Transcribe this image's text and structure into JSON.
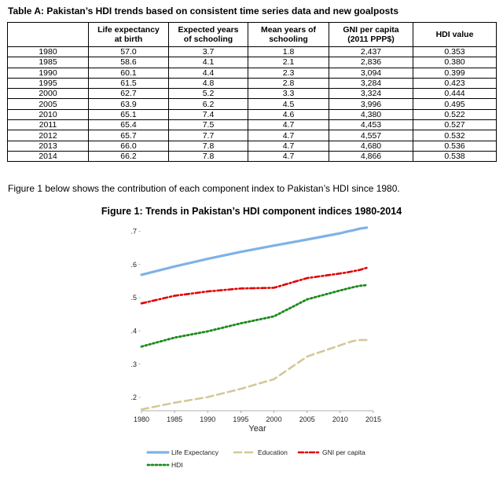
{
  "table": {
    "title": "Table A: Pakistan’s HDI trends based on consistent time series data and new goalposts",
    "headers": [
      [
        "",
        ""
      ],
      [
        "Life expectancy",
        "at birth"
      ],
      [
        "Expected years",
        "of schooling"
      ],
      [
        "Mean years of",
        "schooling"
      ],
      [
        "GNI per capita",
        "(2011 PPP$)"
      ],
      [
        "HDI value",
        ""
      ]
    ],
    "rows": [
      [
        "1980",
        "57.0",
        "3.7",
        "1.8",
        "2,437",
        "0.353"
      ],
      [
        "1985",
        "58.6",
        "4.1",
        "2.1",
        "2,836",
        "0.380"
      ],
      [
        "1990",
        "60.1",
        "4.4",
        "2.3",
        "3,094",
        "0.399"
      ],
      [
        "1995",
        "61.5",
        "4.8",
        "2.8",
        "3,284",
        "0.423"
      ],
      [
        "2000",
        "62.7",
        "5.2",
        "3.3",
        "3,324",
        "0.444"
      ],
      [
        "2005",
        "63.9",
        "6.2",
        "4.5",
        "3,996",
        "0.495"
      ],
      [
        "2010",
        "65.1",
        "7.4",
        "4.6",
        "4,380",
        "0.522"
      ],
      [
        "2011",
        "65.4",
        "7.5",
        "4.7",
        "4,453",
        "0.527"
      ],
      [
        "2012",
        "65.7",
        "7.7",
        "4.7",
        "4,557",
        "0.532"
      ],
      [
        "2013",
        "66.0",
        "7.8",
        "4.7",
        "4,680",
        "0.536"
      ],
      [
        "2014",
        "66.2",
        "7.8",
        "4.7",
        "4,866",
        "0.538"
      ]
    ]
  },
  "intro_text": "Figure 1 below shows the contribution of each component index to Pakistan’s HDI since 1980.",
  "chart_data": {
    "type": "line",
    "title": "Figure 1: Trends in Pakistan’s HDI component indices 1980-2014",
    "xlabel": "Year",
    "ylabel": "",
    "xlim": [
      1980,
      2015
    ],
    "ylim": [
      0.16,
      0.72
    ],
    "x_ticks": [
      1980,
      1985,
      1990,
      1995,
      2000,
      2005,
      2010,
      2015
    ],
    "x_tick_labels": [
      "1980",
      "1985",
      "1990",
      "1995",
      "2000",
      "2005",
      "2010",
      "2015"
    ],
    "y_ticks": [
      0.2,
      0.3,
      0.4,
      0.5,
      0.6,
      0.7
    ],
    "y_tick_labels": [
      ".2",
      ".3",
      ".4",
      ".5",
      ".6",
      ".7"
    ],
    "x": [
      1980,
      1985,
      1990,
      1995,
      2000,
      2005,
      2010,
      2011,
      2012,
      2013,
      2014
    ],
    "series": [
      {
        "name": "Life Expectancy",
        "color": "#7fb2e5",
        "style": "solid",
        "values": [
          0.569,
          0.594,
          0.617,
          0.638,
          0.657,
          0.675,
          0.694,
          0.699,
          0.703,
          0.708,
          0.711
        ]
      },
      {
        "name": "Education",
        "color": "#d4c89a",
        "style": "dashed",
        "values": [
          0.164,
          0.184,
          0.201,
          0.226,
          0.255,
          0.323,
          0.357,
          0.364,
          0.37,
          0.373,
          0.373
        ]
      },
      {
        "name": "GNI per capita",
        "color": "#e00000",
        "style": "dashdot",
        "values": [
          0.483,
          0.506,
          0.519,
          0.528,
          0.53,
          0.559,
          0.573,
          0.576,
          0.58,
          0.584,
          0.59
        ]
      },
      {
        "name": "HDI",
        "color": "#1a8a1a",
        "style": "dotted",
        "values": [
          0.353,
          0.38,
          0.399,
          0.423,
          0.444,
          0.495,
          0.522,
          0.527,
          0.532,
          0.536,
          0.538
        ]
      }
    ],
    "legend_position": "bottom"
  }
}
